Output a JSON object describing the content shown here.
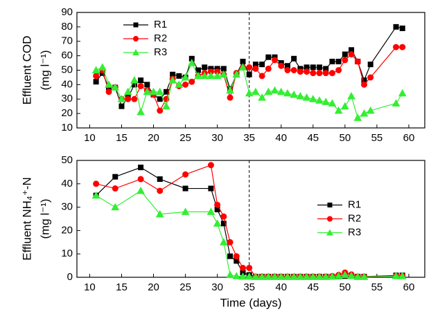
{
  "chart_data": [
    {
      "type": "line",
      "ylabel": "Effluent COD",
      "yunit": "(mg l⁻¹)",
      "x": [
        11,
        12,
        13,
        14,
        15,
        16,
        17,
        18,
        19,
        20,
        21,
        22,
        23,
        24,
        25,
        26,
        27,
        28,
        29,
        30,
        31,
        32,
        33,
        34,
        35,
        36,
        37,
        38,
        39,
        40,
        41,
        42,
        43,
        44,
        45,
        46,
        47,
        48,
        49,
        50,
        51,
        52,
        53,
        54,
        58,
        59
      ],
      "series": [
        {
          "name": "R1",
          "color": "#000000",
          "marker": "square",
          "values": [
            42,
            48,
            38,
            38,
            25,
            31,
            40,
            43,
            40,
            33,
            30,
            35,
            47,
            46,
            45,
            58,
            50,
            52,
            51,
            51,
            51,
            37,
            47,
            56,
            47,
            54,
            54,
            59,
            59,
            55,
            53,
            58,
            51,
            52,
            52,
            52,
            51,
            56,
            56,
            61,
            64,
            56,
            43,
            54,
            80,
            79
          ]
        },
        {
          "name": "R2",
          "color": "#ff0000",
          "marker": "circle",
          "values": [
            46,
            50,
            35,
            38,
            30,
            30,
            30,
            39,
            36,
            33,
            22,
            30,
            44,
            39,
            40,
            42,
            46,
            48,
            49,
            49,
            47,
            31,
            48,
            52,
            52,
            51,
            46,
            51,
            57,
            53,
            50,
            50,
            49,
            49,
            48,
            48,
            48,
            48,
            50,
            57,
            61,
            56,
            40,
            45,
            66,
            66
          ]
        },
        {
          "name": "R3",
          "color": "#33ee33",
          "marker": "triangle",
          "values": [
            50,
            52,
            40,
            38,
            30,
            35,
            43,
            21,
            35,
            35,
            35,
            25,
            43,
            40,
            45,
            55,
            46,
            46,
            46,
            46,
            47,
            36,
            47,
            52,
            34,
            35,
            31,
            35,
            36,
            35,
            34,
            33,
            32,
            31,
            30,
            29,
            28,
            27,
            22,
            25,
            32,
            17,
            20,
            22,
            27,
            34
          ]
        }
      ],
      "xlim": [
        8,
        62.5
      ],
      "xticks": [
        10,
        15,
        20,
        25,
        30,
        35,
        40,
        45,
        50,
        55,
        60
      ],
      "ylim": [
        10,
        90
      ],
      "yticks": [
        10,
        20,
        30,
        40,
        50,
        60,
        70,
        80,
        90
      ],
      "vlines": [
        35
      ],
      "legend": "upper left"
    },
    {
      "type": "line",
      "ylabel": "Effluent NH₄⁺-N",
      "yunit": "(mg l⁻¹)",
      "xlabel": "Time (days)",
      "x": [
        11,
        14,
        18,
        21,
        25,
        29,
        30,
        31,
        32,
        33,
        34,
        35,
        36,
        37,
        38,
        39,
        40,
        41,
        42,
        43,
        44,
        45,
        46,
        47,
        48,
        49,
        50,
        51,
        52,
        53,
        58,
        59
      ],
      "series": [
        {
          "name": "R1",
          "color": "#000000",
          "marker": "square",
          "values": [
            35,
            43,
            47,
            42,
            38,
            38,
            29,
            23,
            9,
            7,
            2,
            1,
            0.3,
            0.3,
            0.3,
            0.3,
            0.3,
            0.3,
            0.3,
            0.3,
            0.3,
            0.3,
            0.3,
            0.3,
            0.3,
            0.3,
            0.5,
            0.5,
            0.3,
            0.3,
            0.8,
            0.8
          ]
        },
        {
          "name": "R2",
          "color": "#ff0000",
          "marker": "circle",
          "values": [
            40,
            38,
            42,
            37,
            44,
            48,
            31,
            26,
            15,
            9,
            4,
            4,
            0.3,
            0.3,
            0.3,
            0.3,
            0.3,
            0.3,
            0.3,
            0.3,
            0.3,
            0.3,
            0.3,
            0.3,
            0.5,
            1,
            2,
            1.2,
            0.3,
            0.3,
            0.6,
            0.6
          ]
        },
        {
          "name": "R3",
          "color": "#33ee33",
          "marker": "triangle",
          "values": [
            35,
            30,
            37,
            27,
            28,
            28,
            23,
            15,
            1,
            0.5,
            0.3,
            0.3,
            0.2,
            0.2,
            0.2,
            0.2,
            0.2,
            0.2,
            0.2,
            0.2,
            0.2,
            0.2,
            0.2,
            0.2,
            0.3,
            0.5,
            1,
            0.6,
            0.2,
            0.2,
            0.5,
            0.5
          ]
        }
      ],
      "xlim": [
        8,
        62.5
      ],
      "xticks": [
        10,
        15,
        20,
        25,
        30,
        35,
        40,
        45,
        50,
        55,
        60
      ],
      "ylim": [
        0,
        50
      ],
      "yticks": [
        0,
        10,
        20,
        30,
        40,
        50
      ],
      "vlines": [
        35
      ],
      "legend": "center right"
    }
  ]
}
